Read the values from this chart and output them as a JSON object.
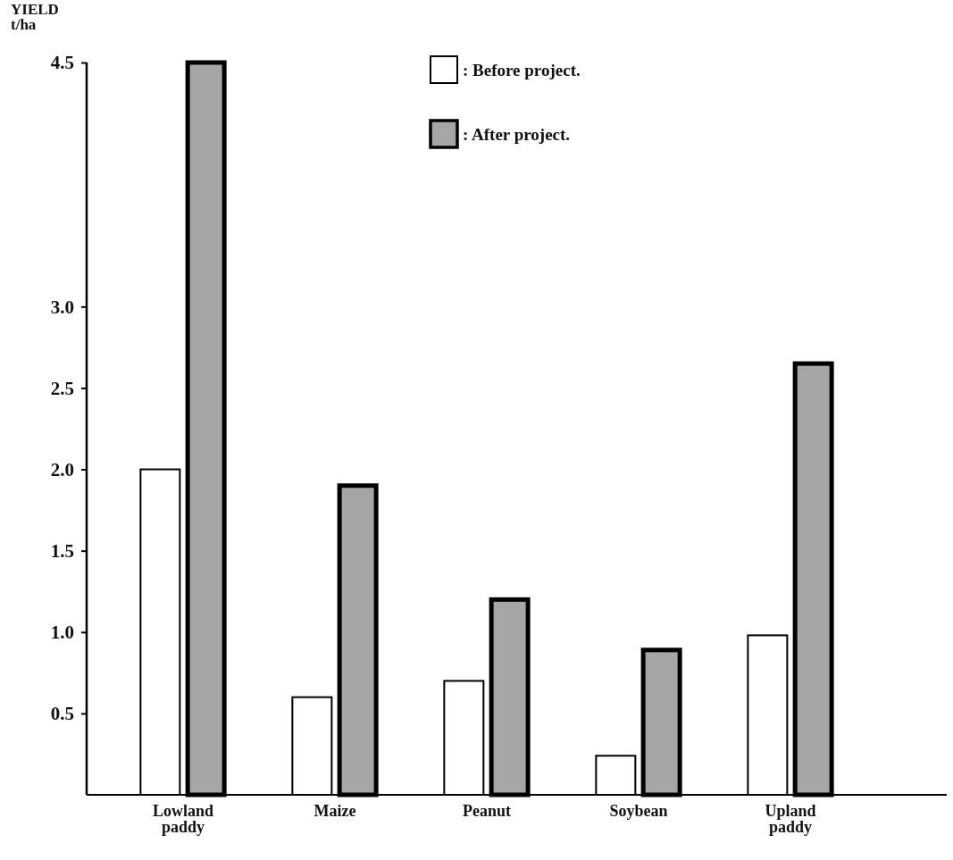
{
  "chart_data": {
    "type": "bar",
    "ylabel": "YIELD t/ha",
    "categories": [
      "Lowland paddy",
      "Maize",
      "Peanut",
      "Soybean",
      "Upland paddy"
    ],
    "series": [
      {
        "name": ": Before project.",
        "color": "#ffffff",
        "values": [
          2.0,
          0.6,
          0.7,
          0.24,
          0.98
        ]
      },
      {
        "name": ": After project.",
        "color": "#a6a6a6",
        "values": [
          4.5,
          1.9,
          1.2,
          0.89,
          2.65
        ]
      }
    ],
    "ylim": [
      0,
      4.5
    ],
    "yticks": [
      0.5,
      {
        "value": 1,
        "label": "1.0"
      },
      1.5,
      {
        "value": 2,
        "label": "2.0"
      },
      2.5,
      {
        "value": 3,
        "label": "3.0"
      },
      4.5
    ],
    "legend": "top right",
    "grid": false
  }
}
